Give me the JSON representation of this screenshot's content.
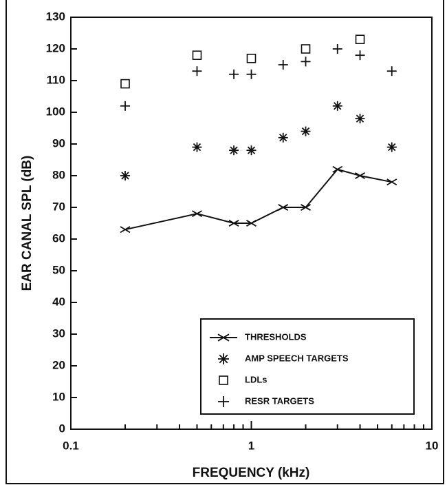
{
  "chart_data": {
    "type": "scatter",
    "xlabel": "FREQUENCY (kHz)",
    "ylabel": "EAR CANAL SPL (dB)",
    "xscale": "log",
    "xlim": [
      0.1,
      10
    ],
    "xticks": [
      0.1,
      1,
      10
    ],
    "xminor": [
      0.2,
      0.3,
      0.4,
      0.5,
      0.6,
      0.7,
      0.8,
      0.9,
      2,
      3,
      4,
      5,
      6,
      7,
      8,
      9
    ],
    "ylim": [
      0,
      130
    ],
    "yticks": [
      0,
      10,
      20,
      30,
      40,
      50,
      60,
      70,
      80,
      90,
      100,
      110,
      120,
      130
    ],
    "legend": "lower right",
    "x": [
      0.2,
      0.5,
      0.8,
      1,
      1.5,
      2,
      3,
      4,
      6
    ],
    "series": [
      {
        "name": "THRESHOLDS",
        "color": "#111",
        "marker": "x",
        "line": true,
        "values": [
          63,
          68,
          65,
          65,
          70,
          70,
          82,
          80,
          78
        ]
      },
      {
        "name": "AMP SPEECH TARGETS",
        "color": "#111",
        "marker": "asterisk",
        "line": false,
        "values": [
          80,
          89,
          88,
          88,
          92,
          94,
          102,
          98,
          89
        ]
      },
      {
        "name": "LDLs",
        "color": "#111",
        "marker": "square",
        "line": false,
        "values": [
          109,
          118,
          null,
          117,
          null,
          120,
          null,
          123,
          null
        ]
      },
      {
        "name": "RESR TARGETS",
        "color": "#111",
        "marker": "plus",
        "line": false,
        "values": [
          102,
          113,
          112,
          112,
          115,
          116,
          120,
          118,
          113
        ]
      }
    ]
  }
}
